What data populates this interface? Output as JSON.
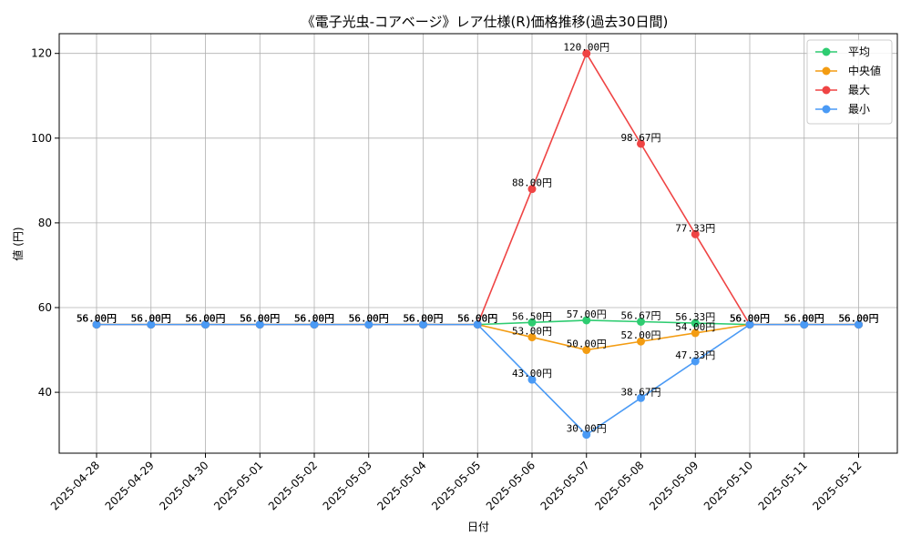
{
  "chart_data": {
    "type": "line",
    "title": "《電子光虫-コアベージ》レア仕様(R)価格推移(過去30日間)",
    "xlabel": "日付",
    "ylabel": "値 (円)",
    "ylim": [
      25,
      125
    ],
    "yticks": [
      40,
      60,
      80,
      100,
      120
    ],
    "grid": true,
    "legend_position": "top-right",
    "label_suffix": "円",
    "categories": [
      "2025-04-28",
      "2025-04-29",
      "2025-04-30",
      "2025-05-01",
      "2025-05-02",
      "2025-05-03",
      "2025-05-04",
      "2025-05-05",
      "2025-05-06",
      "2025-05-07",
      "2025-05-08",
      "2025-05-09",
      "2025-05-10",
      "2025-05-11",
      "2025-05-12"
    ],
    "series": [
      {
        "name": "平均",
        "color": "#2ecc71",
        "values": [
          56,
          56,
          56,
          56,
          56,
          56,
          56,
          56,
          56.5,
          57,
          56.67,
          56.33,
          56,
          56,
          56
        ]
      },
      {
        "name": "中央値",
        "color": "#f39c12",
        "values": [
          56,
          56,
          56,
          56,
          56,
          56,
          56,
          56,
          53,
          50,
          52,
          54,
          56,
          56,
          56
        ]
      },
      {
        "name": "最大",
        "color": "#ef4444",
        "values": [
          56,
          56,
          56,
          56,
          56,
          56,
          56,
          56,
          88,
          120,
          98.67,
          77.33,
          56,
          56,
          56
        ]
      },
      {
        "name": "最小",
        "color": "#4a9af5",
        "values": [
          56,
          56,
          56,
          56,
          56,
          56,
          56,
          56,
          43,
          30,
          38.67,
          47.33,
          56,
          56,
          56
        ]
      }
    ]
  }
}
